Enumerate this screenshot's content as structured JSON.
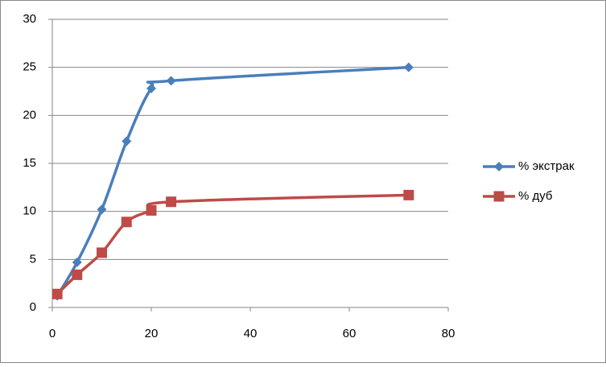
{
  "chart_data": {
    "type": "scatter-smooth",
    "x": [
      1,
      5,
      10,
      15,
      20,
      24,
      72
    ],
    "series": [
      {
        "name": "% экстрак",
        "color": "#4a7ebb",
        "marker": "diamond",
        "values": [
          1.2,
          4.7,
          10.2,
          17.3,
          22.8,
          23.6,
          25.0
        ]
      },
      {
        "name": "% дуб",
        "color": "#be4b48",
        "marker": "square",
        "values": [
          1.4,
          3.4,
          5.7,
          8.9,
          10.1,
          11.0,
          11.7
        ]
      }
    ],
    "xlim": [
      0,
      80
    ],
    "xticks": [
      0,
      20,
      40,
      60,
      80
    ],
    "ylim": [
      0,
      30
    ],
    "yticks": [
      0,
      5,
      10,
      15,
      20,
      25,
      30
    ],
    "grid": true,
    "legend": "right"
  }
}
